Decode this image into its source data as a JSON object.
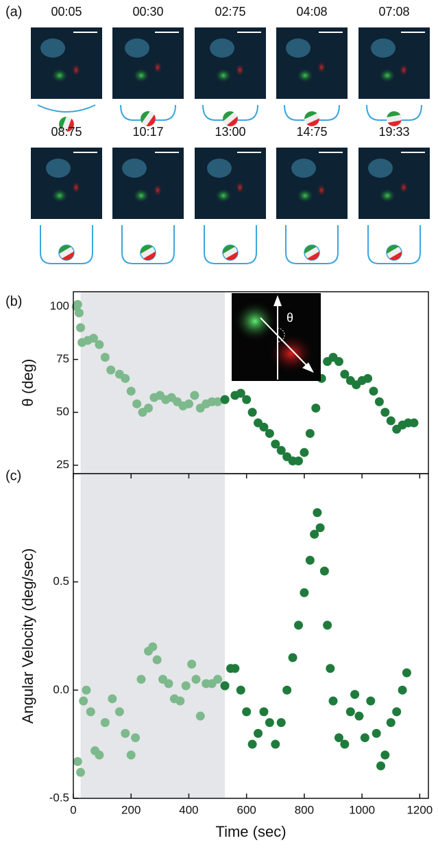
{
  "panel_labels": [
    "(a)",
    "(b)",
    "(c)"
  ],
  "frame_times": [
    "00:05",
    "00:30",
    "02:75",
    "04:08",
    "07:08",
    "08:75",
    "10:17",
    "13:00",
    "14:75",
    "19:33"
  ],
  "chart_data": [
    {
      "type": "scatter",
      "y_label": "θ (deg)",
      "inset_label": "θ",
      "xlim": [
        0,
        1230
      ],
      "ylim": [
        21,
        107
      ],
      "yticks": [
        25,
        50,
        75,
        100
      ],
      "highlight_x": [
        25,
        525
      ],
      "series": [
        {
          "color": "#7db98c",
          "x": [
            10,
            15,
            20,
            25,
            30,
            50,
            70,
            90,
            110,
            130,
            160,
            180,
            200,
            220,
            240,
            260,
            280,
            300,
            320,
            340,
            360,
            380,
            400,
            420,
            440,
            460,
            480,
            500,
            525
          ],
          "values": [
            100,
            101,
            97,
            90,
            83,
            84,
            85,
            82,
            76,
            70,
            68,
            66,
            60,
            54,
            50,
            52,
            57,
            58,
            56,
            57,
            55,
            53,
            54,
            58,
            52,
            54,
            55,
            55,
            56
          ]
        },
        {
          "color": "#1f7b3c",
          "x": [
            525,
            560,
            580,
            600,
            620,
            640,
            660,
            680,
            700,
            720,
            740,
            760,
            780,
            800,
            820,
            840,
            860,
            880,
            900,
            920,
            940,
            960,
            980,
            1000,
            1020,
            1040,
            1060,
            1080,
            1100,
            1120,
            1140,
            1160,
            1180
          ],
          "values": [
            56,
            58,
            59,
            56,
            50,
            45,
            43,
            40,
            35,
            32,
            29,
            27,
            27,
            31,
            40,
            52,
            66,
            74,
            76,
            74,
            68,
            65,
            63,
            65,
            66,
            60,
            55,
            50,
            46,
            42,
            44,
            45,
            45
          ]
        }
      ]
    },
    {
      "type": "scatter",
      "x_label": "Time (sec)",
      "y_label": "Angular Velocity (deg/sec)",
      "xlim": [
        0,
        1230
      ],
      "ylim": [
        -0.5,
        1.0
      ],
      "xticks": [
        0,
        200,
        400,
        600,
        800,
        1000,
        1200
      ],
      "yticks": [
        -0.5,
        {
          "value": 0,
          "label": "0.0"
        },
        0.5
      ],
      "highlight_x": [
        25,
        525
      ],
      "series": [
        {
          "color": "#7db98c",
          "x": [
            15,
            25,
            35,
            45,
            60,
            75,
            90,
            110,
            135,
            160,
            180,
            200,
            215,
            235,
            260,
            275,
            290,
            310,
            330,
            350,
            370,
            390,
            410,
            425,
            440,
            460,
            480,
            500,
            525
          ],
          "values": [
            -0.33,
            -0.38,
            -0.05,
            0.0,
            -0.1,
            -0.28,
            -0.3,
            -0.15,
            -0.04,
            -0.1,
            -0.2,
            -0.3,
            -0.22,
            0.05,
            0.18,
            0.2,
            0.14,
            0.05,
            0.03,
            -0.04,
            -0.05,
            0.02,
            0.12,
            0.05,
            -0.12,
            0.03,
            0.03,
            0.05,
            0.02
          ]
        },
        {
          "color": "#1f7b3c",
          "x": [
            525,
            545,
            560,
            580,
            600,
            620,
            640,
            660,
            680,
            700,
            720,
            740,
            760,
            780,
            800,
            820,
            835,
            845,
            855,
            870,
            880,
            890,
            900,
            920,
            940,
            960,
            975,
            990,
            1010,
            1030,
            1050,
            1065,
            1080,
            1100,
            1120,
            1140,
            1155
          ],
          "values": [
            0.02,
            0.1,
            0.1,
            0.0,
            -0.1,
            -0.25,
            -0.2,
            -0.1,
            -0.15,
            -0.25,
            -0.15,
            0.0,
            0.15,
            0.3,
            0.45,
            0.6,
            0.72,
            0.82,
            0.75,
            0.55,
            0.3,
            0.1,
            -0.05,
            -0.22,
            -0.25,
            -0.1,
            -0.02,
            -0.12,
            -0.22,
            -0.05,
            -0.2,
            -0.35,
            -0.3,
            -0.15,
            -0.1,
            0.0,
            0.08
          ]
        }
      ]
    }
  ]
}
